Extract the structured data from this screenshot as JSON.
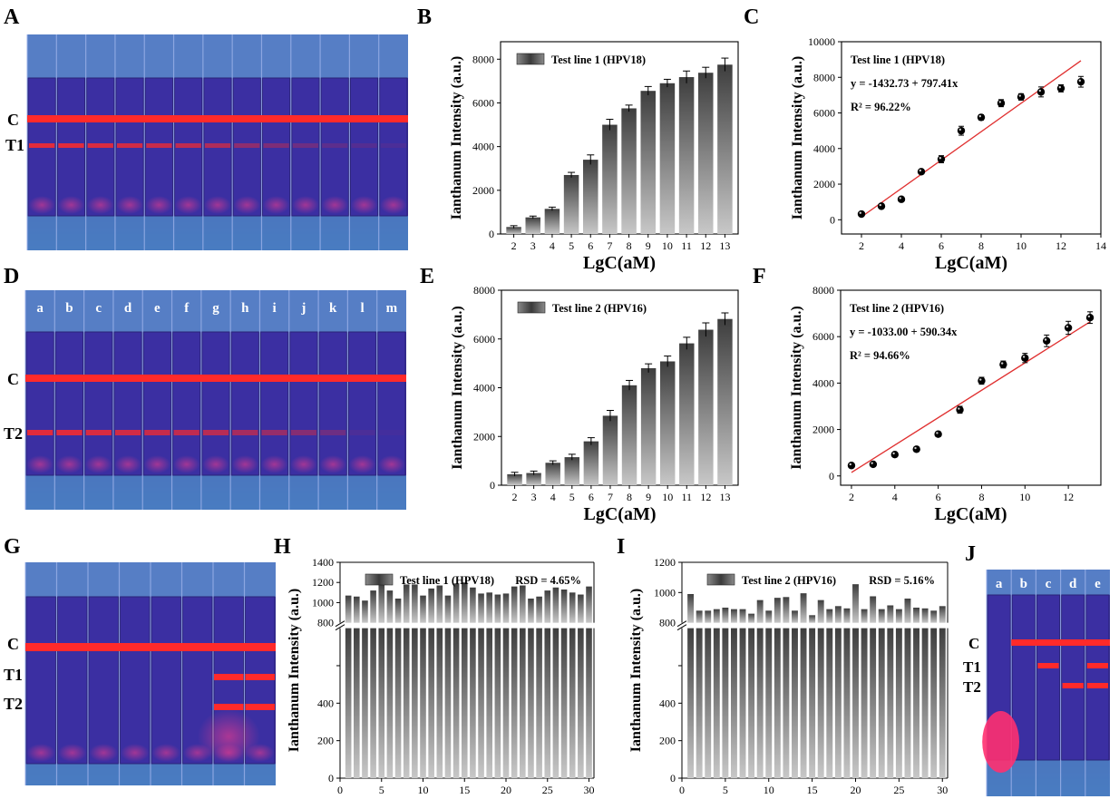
{
  "colors": {
    "strip_bg": "#3a2d9a",
    "strip_top": "#5a86c9",
    "strip_bottom": "#4a7fc2",
    "band": "#ff2a2a",
    "bar_dark": "#3e3e3e",
    "bar_light": "#c8c8c8",
    "fit_line": "#e03030"
  },
  "panel_labels": [
    "A",
    "B",
    "C",
    "D",
    "E",
    "F",
    "G",
    "H",
    "I",
    "J"
  ],
  "photos": {
    "A": {
      "row_labels": [
        "C",
        "T1"
      ],
      "strip_count": 13,
      "t_intensity": [
        1,
        1,
        0.95,
        0.9,
        0.85,
        0.8,
        0.7,
        0.5,
        0.4,
        0.3,
        0.2,
        0.15,
        0.1
      ]
    },
    "D": {
      "row_labels": [
        "C",
        "T2"
      ],
      "strip_letters": [
        "a",
        "b",
        "c",
        "d",
        "e",
        "f",
        "g",
        "h",
        "i",
        "j",
        "k",
        "l",
        "m"
      ],
      "t_intensity": [
        1,
        1,
        0.95,
        0.9,
        0.85,
        0.8,
        0.75,
        0.65,
        0.55,
        0.45,
        0.3,
        0.1,
        0.05
      ]
    },
    "G": {
      "row_labels": [
        "C",
        "T1",
        "T2"
      ],
      "strip_count": 8
    },
    "J": {
      "row_labels": [
        "C",
        "T1",
        "T2"
      ],
      "strip_letters": [
        "a",
        "b",
        "c",
        "d",
        "e"
      ]
    }
  },
  "chart_data": [
    {
      "panel": "B",
      "type": "bar",
      "legend": "Test line 1 (HPV18)",
      "xlabel": "LgC(aM)",
      "ylabel": "Ianthanum Intensity (a.u.)",
      "categories": [
        "2",
        "3",
        "4",
        "5",
        "6",
        "7",
        "8",
        "9",
        "10",
        "11",
        "12",
        "13"
      ],
      "values": [
        320,
        760,
        1150,
        2700,
        3400,
        5000,
        5750,
        6550,
        6900,
        7180,
        7380,
        7750
      ],
      "errors": [
        60,
        60,
        80,
        120,
        220,
        250,
        150,
        200,
        180,
        280,
        250,
        300
      ],
      "ylim": [
        0,
        8800
      ],
      "yticks": [
        0,
        2000,
        4000,
        6000,
        8000
      ]
    },
    {
      "panel": "C",
      "type": "scatter",
      "annotations": [
        "Test line 1 (HPV18)",
        "y = -1432.73 + 797.41x",
        "R² = 96.22%"
      ],
      "xlabel": "LgC(aM)",
      "ylabel": "Ianthanum Intensity (a.u.)",
      "x": [
        2,
        3,
        4,
        5,
        6,
        7,
        8,
        9,
        10,
        11,
        12,
        13
      ],
      "y": [
        320,
        760,
        1150,
        2700,
        3400,
        5000,
        5750,
        6550,
        6900,
        7180,
        7380,
        7750
      ],
      "errors": [
        60,
        60,
        80,
        120,
        200,
        250,
        150,
        200,
        180,
        280,
        200,
        300
      ],
      "fit": {
        "intercept": -1432.73,
        "slope": 797.41
      },
      "xlim": [
        1,
        14
      ],
      "xticks": [
        2,
        4,
        6,
        8,
        10,
        12,
        14
      ],
      "ylim": [
        -800,
        10000
      ],
      "yticks": [
        0,
        2000,
        4000,
        6000,
        8000,
        10000
      ]
    },
    {
      "panel": "E",
      "type": "bar",
      "legend": "Test line 2 (HPV16)",
      "xlabel": "LgC(aM)",
      "ylabel": "Ianthanum Intensity (a.u.)",
      "categories": [
        "2",
        "3",
        "4",
        "5",
        "6",
        "7",
        "8",
        "9",
        "10",
        "11",
        "12",
        "13"
      ],
      "values": [
        450,
        500,
        920,
        1150,
        1800,
        2850,
        4100,
        4800,
        5080,
        5820,
        6380,
        6820
      ],
      "errors": [
        80,
        80,
        80,
        120,
        150,
        220,
        200,
        180,
        220,
        250,
        280,
        250
      ],
      "ylim": [
        0,
        8000
      ],
      "yticks": [
        0,
        2000,
        4000,
        6000,
        8000
      ]
    },
    {
      "panel": "F",
      "type": "scatter",
      "annotations": [
        "Test line 2 (HPV16)",
        "y = -1033.00 + 590.34x",
        "R² = 94.66%"
      ],
      "xlabel": "LgC(aM)",
      "ylabel": "Ianthanum Intensity (a.u.)",
      "x": [
        2,
        3,
        4,
        5,
        6,
        7,
        8,
        9,
        10,
        11,
        12,
        13
      ],
      "y": [
        450,
        500,
        920,
        1150,
        1800,
        2850,
        4100,
        4800,
        5080,
        5820,
        6380,
        6820
      ],
      "errors": [
        60,
        60,
        60,
        100,
        100,
        150,
        150,
        150,
        200,
        250,
        280,
        250
      ],
      "fit": {
        "intercept": -1033.0,
        "slope": 590.34
      },
      "xlim": [
        1.5,
        13.5
      ],
      "xticks": [
        2,
        4,
        6,
        8,
        10,
        12
      ],
      "ylim": [
        -400,
        8000
      ],
      "yticks": [
        0,
        2000,
        4000,
        6000,
        8000
      ]
    },
    {
      "panel": "H",
      "type": "bar",
      "legend": "Test line 1 (HPV18)",
      "rsd": "RSD = 4.65%",
      "xlabel": "",
      "ylabel": "Ianthanum Intensity (a.u.)",
      "x": [
        1,
        2,
        3,
        4,
        5,
        6,
        7,
        8,
        9,
        10,
        11,
        12,
        13,
        14,
        15,
        16,
        17,
        18,
        19,
        20,
        21,
        22,
        23,
        24,
        25,
        26,
        27,
        28,
        29,
        30
      ],
      "values": [
        1070,
        1060,
        1020,
        1120,
        1190,
        1120,
        1040,
        1180,
        1180,
        1070,
        1140,
        1170,
        1070,
        1190,
        1200,
        1150,
        1090,
        1100,
        1080,
        1090,
        1160,
        1170,
        1040,
        1060,
        1120,
        1150,
        1130,
        1100,
        1080,
        1160
      ],
      "y_break": [
        800,
        800
      ],
      "yticks_lower": [
        0,
        200,
        400,
        600,
        800
      ],
      "yticks_upper": [
        800,
        1000,
        1200,
        1400
      ],
      "xticks": [
        0,
        5,
        10,
        15,
        20,
        25,
        30
      ]
    },
    {
      "panel": "I",
      "type": "bar",
      "legend": "Test line 2 (HPV16)",
      "rsd": "RSD = 5.16%",
      "xlabel": "",
      "ylabel": "Ianthanum Intensity (a.u.)",
      "x": [
        1,
        2,
        3,
        4,
        5,
        6,
        7,
        8,
        9,
        10,
        11,
        12,
        13,
        14,
        15,
        16,
        17,
        18,
        19,
        20,
        21,
        22,
        23,
        24,
        25,
        26,
        27,
        28,
        29,
        30
      ],
      "values": [
        990,
        880,
        880,
        890,
        900,
        890,
        890,
        860,
        950,
        880,
        965,
        970,
        880,
        995,
        850,
        950,
        890,
        910,
        895,
        1055,
        890,
        975,
        890,
        915,
        890,
        960,
        900,
        895,
        880,
        910
      ],
      "y_break": [
        800,
        800
      ],
      "yticks_lower": [
        0,
        200,
        400,
        600,
        800
      ],
      "yticks_upper": [
        800,
        1000,
        1200
      ],
      "xticks": [
        0,
        5,
        10,
        15,
        20,
        25,
        30
      ]
    }
  ]
}
